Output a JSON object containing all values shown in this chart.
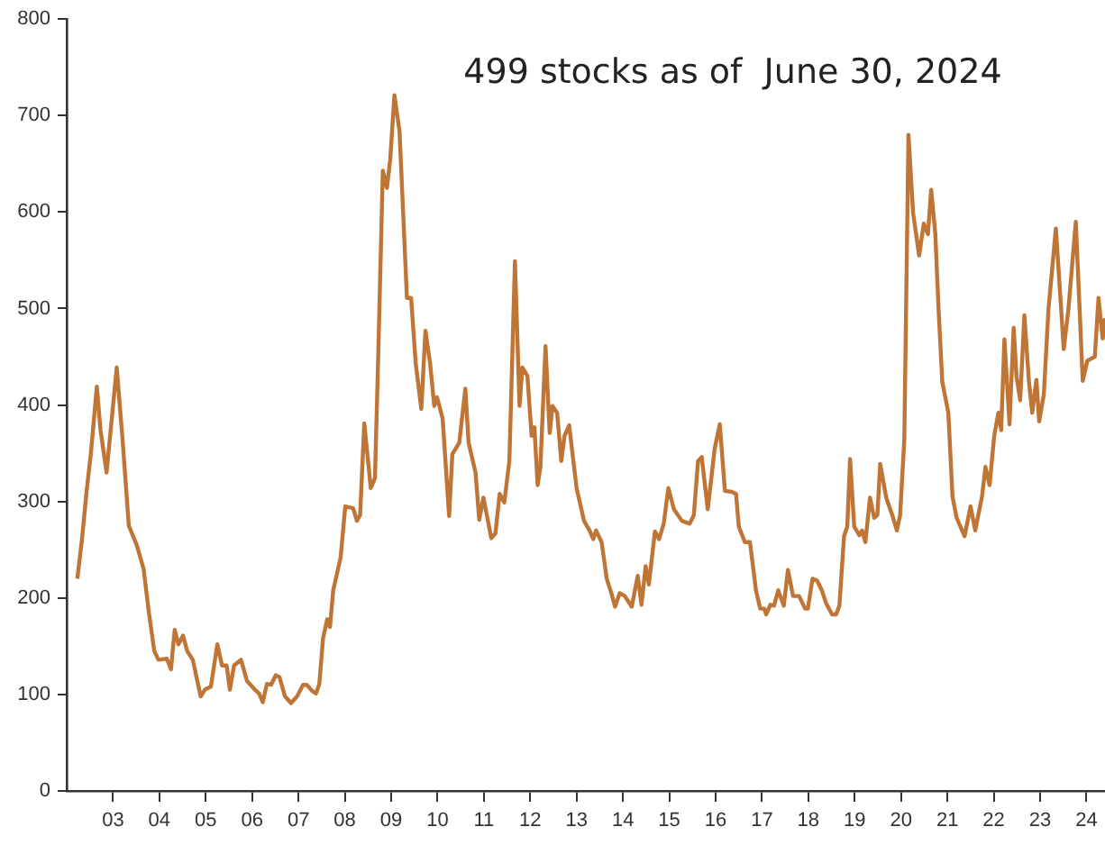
{
  "chart_data": {
    "type": "line",
    "title": "499 stocks as of  June 30, 2024",
    "marker": "none",
    "line_style": "solid",
    "x": [
      2002.23,
      2002.33,
      2002.43,
      2002.52,
      2002.65,
      2002.73,
      2002.86,
      2003.08,
      2003.21,
      2003.34,
      2003.51,
      2003.66,
      2003.77,
      2003.89,
      2003.98,
      2004.16,
      2004.25,
      2004.33,
      2004.41,
      2004.51,
      2004.6,
      2004.72,
      2004.89,
      2004.98,
      2005.11,
      2005.25,
      2005.35,
      2005.45,
      2005.52,
      2005.61,
      2005.76,
      2005.89,
      2006.06,
      2006.15,
      2006.23,
      2006.32,
      2006.41,
      2006.51,
      2006.59,
      2006.71,
      2006.84,
      2006.97,
      2007.1,
      2007.18,
      2007.29,
      2007.38,
      2007.45,
      2007.53,
      2007.62,
      2007.68,
      2007.75,
      2007.91,
      2008.01,
      2008.18,
      2008.26,
      2008.33,
      2008.42,
      2008.56,
      2008.65,
      2008.72,
      2008.82,
      2008.91,
      2008.98,
      2009.07,
      2009.18,
      2009.34,
      2009.43,
      2009.53,
      2009.65,
      2009.74,
      2009.84,
      2009.93,
      2009.99,
      2010.11,
      2010.25,
      2010.32,
      2010.47,
      2010.6,
      2010.67,
      2010.82,
      2010.9,
      2010.99,
      2011.16,
      2011.25,
      2011.34,
      2011.44,
      2011.55,
      2011.67,
      2011.77,
      2011.83,
      2011.94,
      2012.03,
      2012.09,
      2012.16,
      2012.22,
      2012.33,
      2012.42,
      2012.48,
      2012.58,
      2012.67,
      2012.74,
      2012.84,
      2013.0,
      2013.16,
      2013.28,
      2013.36,
      2013.42,
      2013.54,
      2013.65,
      2013.75,
      2013.83,
      2013.93,
      2014.04,
      2014.19,
      2014.32,
      2014.4,
      2014.49,
      2014.56,
      2014.69,
      2014.78,
      2014.88,
      2014.98,
      2015.1,
      2015.27,
      2015.44,
      2015.53,
      2015.62,
      2015.7,
      2015.83,
      2015.98,
      2016.09,
      2016.2,
      2016.35,
      2016.44,
      2016.5,
      2016.63,
      2016.74,
      2016.87,
      2016.96,
      2017.05,
      2017.09,
      2017.18,
      2017.26,
      2017.35,
      2017.47,
      2017.56,
      2017.67,
      2017.8,
      2017.93,
      2017.99,
      2018.09,
      2018.19,
      2018.29,
      2018.38,
      2018.51,
      2018.6,
      2018.67,
      2018.77,
      2018.84,
      2018.9,
      2018.99,
      2019.1,
      2019.16,
      2019.23,
      2019.33,
      2019.42,
      2019.49,
      2019.55,
      2019.68,
      2019.81,
      2019.91,
      2019.98,
      2020.07,
      2020.16,
      2020.26,
      2020.39,
      2020.49,
      2020.58,
      2020.65,
      2020.74,
      2020.81,
      2020.89,
      2021.02,
      2021.11,
      2021.2,
      2021.37,
      2021.5,
      2021.6,
      2021.75,
      2021.82,
      2021.91,
      2022.01,
      2022.1,
      2022.16,
      2022.23,
      2022.34,
      2022.43,
      2022.49,
      2022.57,
      2022.66,
      2022.76,
      2022.83,
      2022.92,
      2022.98,
      2023.08,
      2023.18,
      2023.34,
      2023.51,
      2023.61,
      2023.77,
      2023.92,
      2024.02,
      2024.18,
      2024.26,
      2024.35,
      2024.4
    ],
    "series": [
      {
        "color": "#bf7536",
        "values": [
          220,
          261,
          311,
          349,
          419,
          374,
          330,
          439,
          361,
          275,
          255,
          230,
          186,
          145,
          136,
          137,
          126,
          167,
          152,
          161,
          145,
          136,
          98,
          105,
          108,
          152,
          130,
          130,
          105,
          130,
          136,
          114,
          105,
          101,
          92,
          111,
          110,
          120,
          118,
          98,
          91,
          98,
          110,
          110,
          104,
          101,
          111,
          158,
          178,
          170,
          208,
          242,
          295,
          293,
          280,
          286,
          381,
          314,
          324,
          449,
          643,
          625,
          655,
          721,
          684,
          511,
          511,
          443,
          396,
          477,
          443,
          399,
          408,
          386,
          285,
          349,
          361,
          417,
          361,
          330,
          281,
          304,
          262,
          267,
          308,
          299,
          342,
          549,
          399,
          439,
          430,
          368,
          377,
          317,
          336,
          461,
          371,
          399,
          392,
          342,
          368,
          379,
          314,
          280,
          270,
          261,
          270,
          258,
          220,
          205,
          191,
          205,
          202,
          191,
          223,
          193,
          233,
          214,
          269,
          261,
          277,
          314,
          292,
          280,
          277,
          286,
          342,
          346,
          292,
          355,
          380,
          311,
          310,
          308,
          274,
          258,
          258,
          208,
          189,
          189,
          183,
          193,
          192,
          208,
          192,
          229,
          202,
          202,
          189,
          189,
          220,
          218,
          208,
          195,
          183,
          183,
          192,
          264,
          274,
          344,
          274,
          265,
          270,
          258,
          304,
          283,
          286,
          339,
          304,
          286,
          270,
          286,
          364,
          680,
          599,
          555,
          588,
          577,
          623,
          577,
          499,
          424,
          392,
          305,
          283,
          264,
          295,
          270,
          306,
          336,
          317,
          368,
          392,
          374,
          468,
          380,
          480,
          430,
          405,
          493,
          424,
          392,
          426,
          383,
          411,
          499,
          583,
          458,
          499,
          590,
          425,
          446,
          450,
          511,
          469,
          490
        ]
      }
    ],
    "xlim": [
      2002.0,
      2024.4
    ],
    "xticks": [
      {
        "value": 2003,
        "label": "03"
      },
      {
        "value": 2004,
        "label": "04"
      },
      {
        "value": 2005,
        "label": "05"
      },
      {
        "value": 2006,
        "label": "06"
      },
      {
        "value": 2007,
        "label": "07"
      },
      {
        "value": 2008,
        "label": "08"
      },
      {
        "value": 2009,
        "label": "09"
      },
      {
        "value": 2010,
        "label": "10"
      },
      {
        "value": 2011,
        "label": "11"
      },
      {
        "value": 2012,
        "label": "12"
      },
      {
        "value": 2013,
        "label": "13"
      },
      {
        "value": 2014,
        "label": "14"
      },
      {
        "value": 2015,
        "label": "15"
      },
      {
        "value": 2016,
        "label": "16"
      },
      {
        "value": 2017,
        "label": "17"
      },
      {
        "value": 2018,
        "label": "18"
      },
      {
        "value": 2019,
        "label": "19"
      },
      {
        "value": 2020,
        "label": "20"
      },
      {
        "value": 2021,
        "label": "21"
      },
      {
        "value": 2022,
        "label": "22"
      },
      {
        "value": 2023,
        "label": "23"
      },
      {
        "value": 2024,
        "label": "24"
      }
    ],
    "ylim": [
      0,
      800
    ],
    "yticks": [
      0,
      100,
      200,
      300,
      400,
      500,
      600,
      700,
      800
    ]
  }
}
